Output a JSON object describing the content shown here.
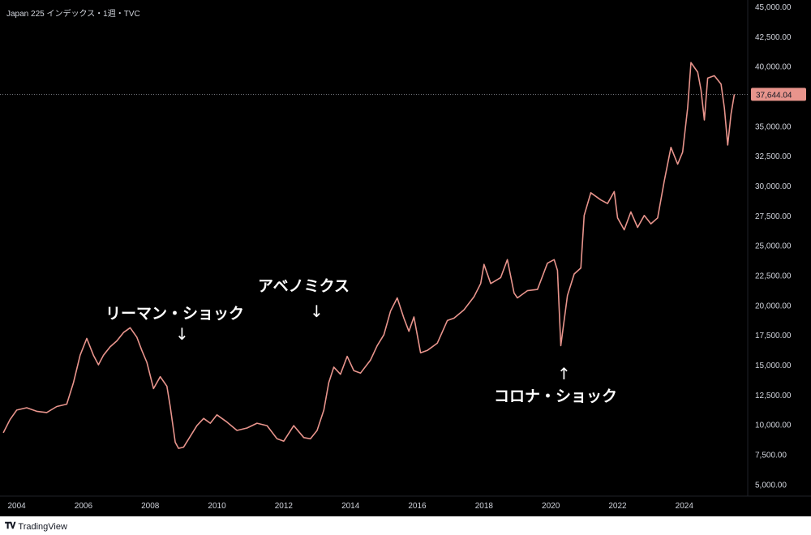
{
  "header": {
    "title": "Japan 225 インデックス・1週・TVC"
  },
  "footer": {
    "logo_icon": "tradingview-logo-icon",
    "brand": "TradingView"
  },
  "price_label": "37,644.04",
  "colors": {
    "background": "#000000",
    "line": "#e8948c",
    "label_bg": "#e8948c",
    "text": "#d1d4dc"
  },
  "annotations": {
    "lehman": {
      "text": "リーマン・ショック",
      "arrow": "↓"
    },
    "abenomics": {
      "text": "アベノミクス",
      "arrow": "↓"
    },
    "corona": {
      "text": "コロナ・ショック",
      "arrow": "↑"
    }
  },
  "chart_data": {
    "type": "line",
    "title": "Japan 225 インデックス・1週・TVC",
    "xlabel": "",
    "ylabel": "",
    "xlim": [
      2003.5,
      2025.9
    ],
    "ylim": [
      4000,
      45000
    ],
    "x_ticks": [
      "2004",
      "2006",
      "2008",
      "2010",
      "2012",
      "2014",
      "2016",
      "2018",
      "2020",
      "2022",
      "2024"
    ],
    "y_ticks": [
      "5,000.00",
      "7,500.00",
      "10,000.00",
      "12,500.00",
      "15,000.00",
      "17,500.00",
      "20,000.00",
      "22,500.00",
      "25,000.00",
      "27,500.00",
      "30,000.00",
      "32,500.00",
      "35,000.00",
      "37,500.00",
      "40,000.00",
      "42,500.00",
      "45,000.00"
    ],
    "last_value": 37644.04,
    "series": [
      {
        "x": [
          2003.6,
          2003.8,
          2004.0,
          2004.3,
          2004.6,
          2004.9,
          2005.2,
          2005.5,
          2005.7,
          2005.9,
          2006.1,
          2006.3,
          2006.45,
          2006.6,
          2006.8,
          2007.0,
          2007.2,
          2007.4,
          2007.6,
          2007.75,
          2007.9,
          2008.1,
          2008.3,
          2008.5,
          2008.6,
          2008.75,
          2008.85,
          2009.0,
          2009.2,
          2009.4,
          2009.6,
          2009.8,
          2010.0,
          2010.3,
          2010.6,
          2010.9,
          2011.2,
          2011.5,
          2011.8,
          2012.0,
          2012.3,
          2012.6,
          2012.8,
          2013.0,
          2013.2,
          2013.35,
          2013.5,
          2013.7,
          2013.9,
          2014.1,
          2014.3,
          2014.6,
          2014.8,
          2015.0,
          2015.2,
          2015.4,
          2015.6,
          2015.75,
          2015.9,
          2016.1,
          2016.3,
          2016.6,
          2016.9,
          2017.1,
          2017.4,
          2017.7,
          2017.9,
          2018.0,
          2018.2,
          2018.5,
          2018.7,
          2018.9,
          2019.0,
          2019.3,
          2019.6,
          2019.9,
          2020.1,
          2020.2,
          2020.3,
          2020.5,
          2020.7,
          2020.9,
          2021.0,
          2021.2,
          2021.5,
          2021.7,
          2021.9,
          2022.0,
          2022.2,
          2022.4,
          2022.6,
          2022.8,
          2023.0,
          2023.2,
          2023.4,
          2023.6,
          2023.8,
          2023.95,
          2024.1,
          2024.2,
          2024.4,
          2024.5,
          2024.6,
          2024.7,
          2024.9,
          2025.1,
          2025.2,
          2025.3,
          2025.4,
          2025.5
        ],
        "values": [
          9300,
          10400,
          11200,
          11400,
          11100,
          11000,
          11500,
          11700,
          13500,
          15800,
          17200,
          15800,
          15000,
          15800,
          16500,
          17000,
          17700,
          18100,
          17300,
          16200,
          15200,
          13000,
          14000,
          13200,
          11500,
          8500,
          8000,
          8100,
          9000,
          9900,
          10500,
          10100,
          10800,
          10200,
          9500,
          9700,
          10100,
          9900,
          8800,
          8600,
          9900,
          8900,
          8800,
          9500,
          11200,
          13500,
          14800,
          14200,
          15700,
          14500,
          14300,
          15400,
          16600,
          17500,
          19500,
          20600,
          18900,
          17800,
          19000,
          16000,
          16200,
          16800,
          18700,
          18900,
          19600,
          20700,
          21800,
          23400,
          21800,
          22300,
          23800,
          21000,
          20600,
          21200,
          21300,
          23500,
          23800,
          22900,
          16600,
          20800,
          22600,
          23100,
          27500,
          29400,
          28800,
          28500,
          29500,
          27300,
          26300,
          27800,
          26500,
          27500,
          26800,
          27300,
          30400,
          33200,
          31800,
          32800,
          36500,
          40300,
          39500,
          38000,
          35500,
          39000,
          39200,
          38500,
          36500,
          33400,
          36000,
          37644
        ]
      }
    ]
  }
}
